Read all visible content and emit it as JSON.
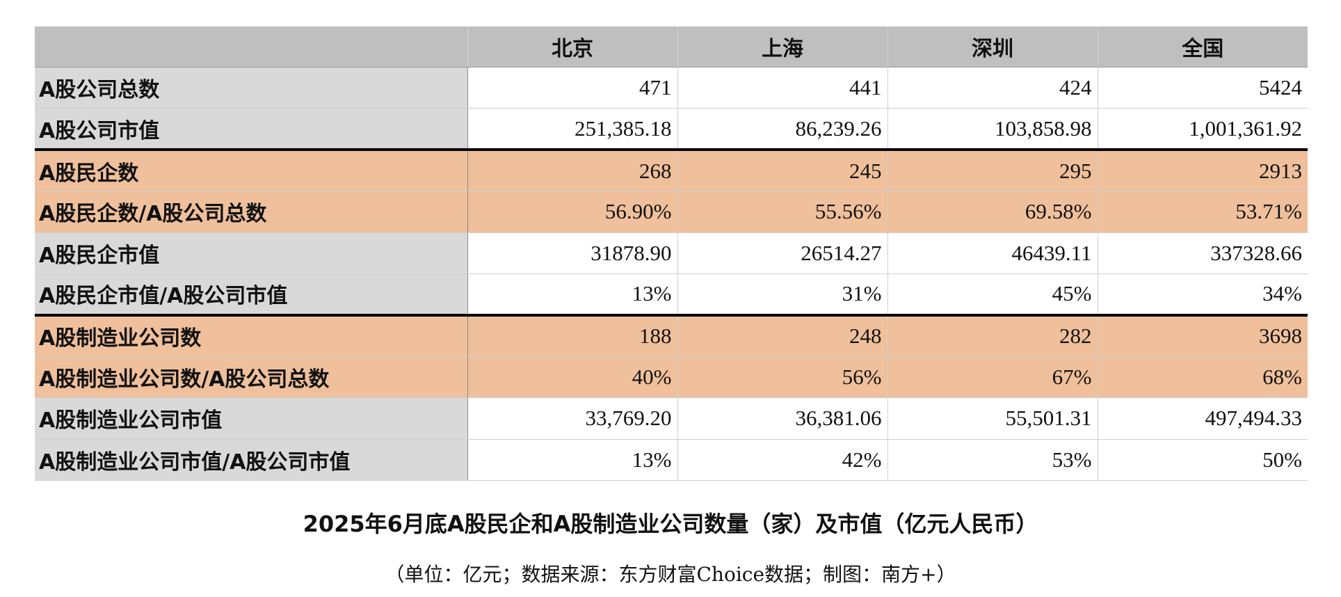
{
  "table": {
    "corner": "",
    "columns": [
      "北京",
      "上海",
      "深圳",
      "全国"
    ],
    "rows": [
      {
        "label": "A股公司总数",
        "values": [
          "471",
          "441",
          "424",
          "5424"
        ]
      },
      {
        "label": "A股公司市值",
        "values": [
          "251,385.18",
          "86,239.26",
          "103,858.98",
          "1,001,361.92"
        ]
      },
      {
        "label": "A股民企数",
        "values": [
          "268",
          "245",
          "295",
          "2913"
        ]
      },
      {
        "label": "A股民企数/A股公司总数",
        "values": [
          "56.90%",
          "55.56%",
          "69.58%",
          "53.71%"
        ]
      },
      {
        "label": "A股民企市值",
        "values": [
          "31878.90",
          "26514.27",
          "46439.11",
          "337328.66"
        ]
      },
      {
        "label": "A股民企市值/A股公司市值",
        "values": [
          "13%",
          "31%",
          "45%",
          "34%"
        ]
      },
      {
        "label": "A股制造业公司数",
        "values": [
          "188",
          "248",
          "282",
          "3698"
        ]
      },
      {
        "label": "A股制造业公司数/A股公司总数",
        "values": [
          "40%",
          "56%",
          "67%",
          "68%"
        ]
      },
      {
        "label": "A股制造业公司市值",
        "values": [
          "33,769.20",
          "36,381.06",
          "55,501.31",
          "497,494.33"
        ]
      },
      {
        "label": "A股制造业公司市值/A股公司市值",
        "values": [
          "13%",
          "42%",
          "53%",
          "50%"
        ]
      }
    ]
  },
  "caption": {
    "title": "2025年6月底A股民企和A股制造业公司数量（家）及市值（亿元人民币）",
    "source": "（单位：亿元；数据来源：东方财富Choice数据；制图：南方+）"
  },
  "colors": {
    "header_bg": "#bfbfbf",
    "label_bg": "#d9d9d9",
    "highlight_bg": "#efc09b",
    "separator": "#000000"
  }
}
